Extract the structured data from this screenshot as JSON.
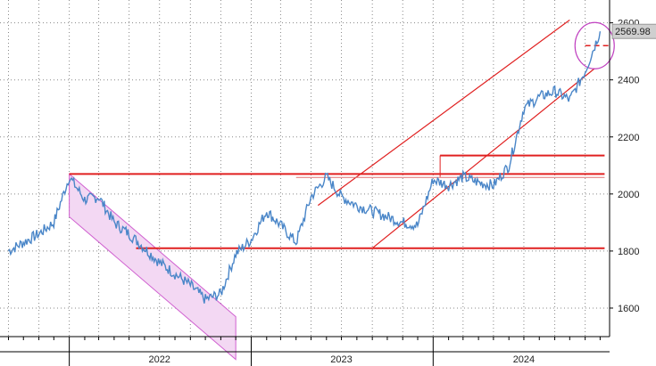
{
  "chart_data": {
    "type": "line",
    "series": [
      {
        "x": [
          "2021-09-01",
          "2021-10-01",
          "2021-11-01",
          "2021-12-01",
          "2022-01-01",
          "2022-02-01",
          "2022-03-01",
          "2022-04-01",
          "2022-05-01",
          "2022-06-01",
          "2022-07-01",
          "2022-08-01",
          "2022-09-01",
          "2022-10-01",
          "2022-11-01",
          "2022-12-01",
          "2023-01-01",
          "2023-02-01",
          "2023-03-01",
          "2023-04-01",
          "2023-05-01",
          "2023-06-01",
          "2023-07-01",
          "2023-08-01",
          "2023-09-01",
          "2023-10-01",
          "2023-11-01",
          "2023-12-01",
          "2024-01-01",
          "2024-02-01",
          "2024-03-01",
          "2024-04-01",
          "2024-05-01",
          "2024-06-01",
          "2024-07-01",
          "2024-08-01",
          "2024-09-01",
          "2024-10-01",
          "2024-11-01",
          "2024-12-01"
        ],
        "values": [
          1800,
          1830,
          1860,
          1900,
          2060,
          1980,
          1990,
          1900,
          1860,
          1810,
          1760,
          1720,
          1680,
          1630,
          1650,
          1790,
          1840,
          1940,
          1890,
          1830,
          1990,
          2060,
          1990,
          1960,
          1940,
          1920,
          1900,
          1890,
          2050,
          2030,
          2060,
          2040,
          2030,
          2100,
          2300,
          2340,
          2360,
          2330,
          2430,
          2570
        ]
      }
    ],
    "ylim": [
      1500,
      2680
    ],
    "y_ticks": [
      "1600",
      "1800",
      "2000",
      "2200",
      "2400",
      "2600"
    ],
    "x_ticks": [
      "2022",
      "2023",
      "2024"
    ],
    "last_value_label": "2569.98",
    "grid": true,
    "y_axis_side": "right",
    "annotations": {
      "horizontal_lines": [
        {
          "y": 2070,
          "x_start": "2022-01-01",
          "x_end": "2024-12-10",
          "color": "#e02020"
        },
        {
          "y": 1810,
          "x_start": "2022-05-15",
          "x_end": "2024-12-10",
          "color": "#e02020"
        },
        {
          "y": 2135,
          "x_start": "2024-01-15",
          "x_end": "2024-12-10",
          "color": "#e02020"
        }
      ],
      "up_channel": {
        "start_x": "2023-09-01",
        "start_y": 1810,
        "end_x": "2024-11-20",
        "end_y": 2440,
        "width": 300,
        "color": "#e02020"
      },
      "down_channel": {
        "start_x": "2022-01-01",
        "start_y": 1920,
        "end_x": "2022-12-01",
        "end_y": 1420,
        "width": 150,
        "color": "#d060d0",
        "fill": "#f3d8f3"
      },
      "circle": {
        "x": "2024-11-20",
        "y": 2520,
        "color": "#c040c0"
      },
      "last_level": {
        "y": 2520,
        "color": "#e02020"
      }
    },
    "colors": {
      "series": "#4a86c8",
      "grid": "#888888",
      "badge_bg": "#cfcfcf"
    }
  }
}
